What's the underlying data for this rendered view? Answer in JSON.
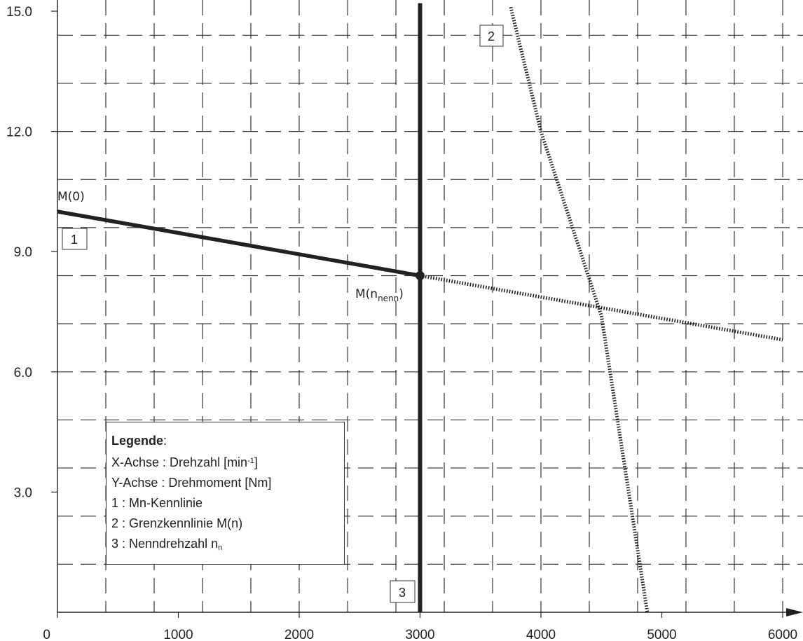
{
  "chart_data": {
    "type": "line",
    "x_ticks": [
      "0",
      "1000",
      "2000",
      "3000",
      "4000",
      "5000",
      "6000"
    ],
    "y_ticks": [
      "3.0",
      "6.0",
      "9.0",
      "12.0",
      "15.0"
    ],
    "xlim": [
      0,
      6100
    ],
    "ylim": [
      0,
      15.2
    ],
    "grid": true,
    "series": [
      {
        "id": "1",
        "style": "solid",
        "x": [
          0,
          3000
        ],
        "y": [
          10.0,
          8.4
        ]
      },
      {
        "id": "1-ext",
        "style": "dotted",
        "x": [
          3000,
          6000
        ],
        "y": [
          8.4,
          6.8
        ]
      },
      {
        "id": "2",
        "style": "dotted",
        "x": [
          3750,
          4000,
          4500,
          4880
        ],
        "y": [
          15.1,
          12.0,
          7.4,
          0
        ]
      },
      {
        "id": "3",
        "style": "solid-vertical",
        "x": [
          3000,
          3000
        ],
        "y": [
          0,
          15.2
        ]
      }
    ],
    "marker_point": {
      "x": 3000,
      "y": 8.4
    },
    "annotations": {
      "m0": "M(0)",
      "mn_main": "M(n",
      "mn_sub": "nenn",
      "mn_close": ")"
    },
    "series_labels": [
      "1",
      "2",
      "3"
    ],
    "legend": {
      "title": "Legende",
      "title_suffix": ":",
      "x_axis_pre": "X-Achse : Drehzahl [min",
      "x_axis_sup": "-1",
      "x_axis_post": "]",
      "y_axis": "Y-Achse : Drehmoment [Nm]",
      "item1": "1 : Mn-Kennlinie",
      "item2": "2 : Grenzkennlinie M(n)",
      "item3_pre": "3 : Nenndrehzahl n",
      "item3_sub": "n"
    }
  }
}
